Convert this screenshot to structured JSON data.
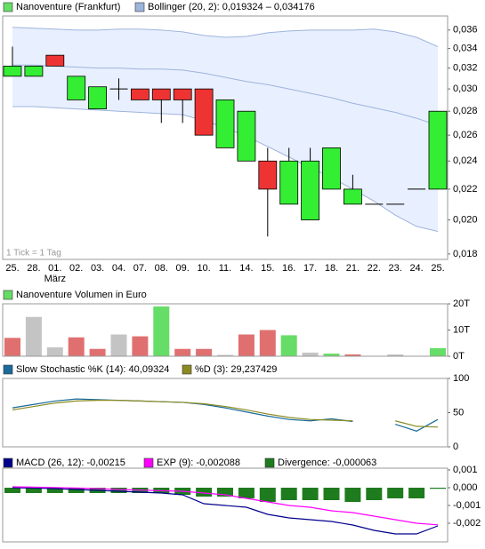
{
  "chart_data": [
    {
      "type": "candlestick",
      "log_scale": true,
      "categories": [
        "25.",
        "28.",
        "01.",
        "02.",
        "03.",
        "04.",
        "07.",
        "08.",
        "09.",
        "10.",
        "11.",
        "14.",
        "15.",
        "16.",
        "17.",
        "18.",
        "21.",
        "22.",
        "23.",
        "24.",
        "25."
      ],
      "x_annotations": [
        {
          "text": "März",
          "category": "01."
        }
      ],
      "annotation": "1 Tick = 1 Tag",
      "ylim": [
        0.0177,
        0.0376
      ],
      "yticks": [
        {
          "value": 0.036,
          "label": "0,036"
        },
        {
          "value": 0.034,
          "label": "0,034"
        },
        {
          "value": 0.032,
          "label": "0,032"
        },
        {
          "value": 0.03,
          "label": "0,030"
        },
        {
          "value": 0.028,
          "label": "0,028"
        },
        {
          "value": 0.026,
          "label": "0,026"
        },
        {
          "value": 0.024,
          "label": "0,024"
        },
        {
          "value": 0.022,
          "label": "0,022"
        },
        {
          "value": 0.02,
          "label": "0,020"
        },
        {
          "value": 0.018,
          "label": "0,018"
        }
      ],
      "series": [
        {
          "name": "Bollinger (20, 2): 0,019324 – 0,034176",
          "kind": "band",
          "color": "#9db4dc",
          "fill": "#e8efff",
          "upper": [
            0.0363,
            0.0362,
            0.0361,
            0.036,
            0.036,
            0.0361,
            0.0361,
            0.036,
            0.0358,
            0.0354,
            0.0352,
            0.0353,
            0.0357,
            0.0359,
            0.036,
            0.036,
            0.036,
            0.0361,
            0.0358,
            0.0352,
            0.0342
          ],
          "middle": [
            0.0323,
            0.0323,
            0.0322,
            0.0321,
            0.032,
            0.032,
            0.0319,
            0.0319,
            0.0318,
            0.0315,
            0.0311,
            0.0307,
            0.0304,
            0.03,
            0.0296,
            0.0292,
            0.0287,
            0.0283,
            0.0279,
            0.0274,
            0.0268
          ],
          "lower": [
            0.0284,
            0.0284,
            0.0283,
            0.0282,
            0.0281,
            0.028,
            0.0279,
            0.0278,
            0.0277,
            0.0272,
            0.0266,
            0.0259,
            0.0251,
            0.0243,
            0.0235,
            0.0228,
            0.022,
            0.0212,
            0.0203,
            0.0196,
            0.0193
          ]
        },
        {
          "name": "Nanoventure (Frankfurt)",
          "kind": "candlestick",
          "color": "#66dd66",
          "up_color": "#33ee33",
          "down_color": "#ee3333",
          "open": [
            0.0312,
            0.0312,
            0.0333,
            0.029,
            0.0282,
            0.03,
            0.03,
            0.03,
            0.03,
            0.03,
            0.025,
            0.024,
            0.024,
            0.021,
            0.02,
            0.022,
            0.021,
            0.021,
            0.021,
            0.022,
            0.022
          ],
          "high": [
            0.0342,
            0.0322,
            0.0333,
            0.0312,
            0.0302,
            0.031,
            0.03,
            0.03,
            0.03,
            0.03,
            0.029,
            0.028,
            0.025,
            0.025,
            0.025,
            0.025,
            0.023,
            0.021,
            0.021,
            0.022,
            0.028
          ],
          "low": [
            0.0312,
            0.0312,
            0.0322,
            0.029,
            0.0282,
            0.029,
            0.029,
            0.027,
            0.027,
            0.026,
            0.025,
            0.024,
            0.019,
            0.021,
            0.02,
            0.022,
            0.021,
            0.021,
            0.021,
            0.022,
            0.022
          ],
          "close": [
            0.0322,
            0.0322,
            0.0322,
            0.0312,
            0.0302,
            0.03,
            0.029,
            0.029,
            0.029,
            0.026,
            0.029,
            0.028,
            0.022,
            0.024,
            0.024,
            0.025,
            0.022,
            0.021,
            0.021,
            0.022,
            0.028
          ]
        }
      ]
    },
    {
      "type": "bar",
      "ylim": [
        0,
        20
      ],
      "yticks": [
        {
          "value": 20,
          "label": "20T"
        },
        {
          "value": 10,
          "label": "10T"
        },
        {
          "value": 0,
          "label": "0T"
        }
      ],
      "series": [
        {
          "name": "Nanoventure Volumen in Euro",
          "kind": "bar",
          "color": "#66dd66",
          "values": [
            7,
            15,
            3.4,
            7.2,
            2.8,
            8.3,
            7.6,
            19,
            2.8,
            2.8,
            0.5,
            8.3,
            10,
            8,
            1.4,
            1,
            0.7,
            0,
            0.7,
            0,
            3.1
          ],
          "colors": [
            "#e07070",
            "#c4c4c4",
            "#c4c4c4",
            "#e07070",
            "#e07070",
            "#c4c4c4",
            "#e07070",
            "#66dd66",
            "#e07070",
            "#e07070",
            "#c4c4c4",
            "#e07070",
            "#e07070",
            "#66dd66",
            "#c4c4c4",
            "#66dd66",
            "#e07070",
            "#c4c4c4",
            "#c4c4c4",
            "#c4c4c4",
            "#66dd66"
          ]
        }
      ]
    },
    {
      "type": "line",
      "ylim": [
        0,
        100
      ],
      "yticks": [
        100,
        50,
        0
      ],
      "series": [
        {
          "name": "Slow Stochastic %K (14): 40,09324",
          "kind": "line",
          "color": "#1a6a9a",
          "values": [
            57,
            62,
            67,
            70,
            69,
            68,
            67,
            66,
            65,
            62,
            57,
            51,
            45,
            40,
            38,
            41,
            37,
            null,
            33,
            23,
            40
          ]
        },
        {
          "name": "%D (3): 29,237429",
          "kind": "line",
          "color": "#8a8a20",
          "values": [
            54,
            59,
            64,
            67,
            68,
            68,
            67,
            66,
            65,
            63,
            59,
            54,
            48,
            43,
            40,
            39,
            38,
            null,
            38,
            30,
            29
          ]
        }
      ]
    },
    {
      "type": "line",
      "ylim": [
        -0.00305,
        0.0011
      ],
      "yticks": [
        {
          "value": 0.001,
          "label": "0,001"
        },
        {
          "value": 0,
          "label": "0,000"
        },
        {
          "value": -0.001,
          "label": "-0,001"
        },
        {
          "value": -0.002,
          "label": "-0,002"
        }
      ],
      "series": [
        {
          "name": "MACD (26, 12): -0,00215",
          "kind": "line",
          "color": "#00008b",
          "values": [
            0,
            -2e-05,
            -5e-05,
            -0.0001,
            -0.00015,
            -0.0002,
            -0.00025,
            -0.0003,
            -0.0004,
            -0.0009,
            -0.001,
            -0.0011,
            -0.0015,
            -0.0017,
            -0.0018,
            -0.0019,
            -0.0021,
            -0.0024,
            -0.0026,
            -0.0026,
            -0.00215
          ]
        },
        {
          "name": "EXP (9): -0,002088",
          "kind": "line",
          "color": "#ff00ff",
          "values": [
            5e-05,
            3e-05,
            1e-05,
            -2e-05,
            -5e-05,
            -0.0001,
            -0.00013,
            -0.00017,
            -0.0002,
            -0.0003,
            -0.0004,
            -0.0006,
            -0.0008,
            -0.001,
            -0.0011,
            -0.0013,
            -0.0014,
            -0.0016,
            -0.0018,
            -0.002,
            -0.00209
          ]
        },
        {
          "name": "Divergence: -0,000063",
          "kind": "bar",
          "color": "#1e7b1e",
          "values": [
            -0.0003,
            -0.0003,
            -0.0003,
            -0.0003,
            -0.0003,
            -0.0003,
            -0.0003,
            -0.0003,
            -0.0004,
            -0.0005,
            -0.0005,
            -0.0006,
            -0.0008,
            -0.0007,
            -0.0007,
            -0.0007,
            -0.0008,
            -0.0007,
            -0.0006,
            -0.0006,
            -6e-05
          ]
        }
      ]
    }
  ]
}
